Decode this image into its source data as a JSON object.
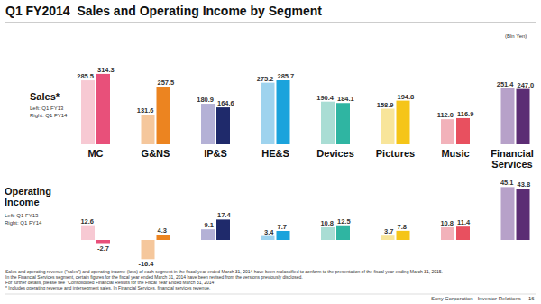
{
  "page": {
    "title": "Q1 FY2014  Sales and Operating Income by Segment",
    "unit": "(Bln Yen)",
    "footnotes": [
      "Sales and operating revenue (\"sales\") and operating income (loss) of each segment in the fiscal year ended March 31, 2014 have been reclassified to conform to the presentation of the fiscal year ending March 31, 2015.",
      "In the Financial Services segment, certain figures for the fiscal year ended March 31, 2014 have been revised from the versions previously disclosed.",
      "For further details, please see \"Consolidated Financial Results for the Fiscal Year Ended March 31, 2014\"",
      "* Includes operating revenue and intersegment sales. In Financial Services, financial services revenue."
    ],
    "footer": "Sony Corporation   Investor Relations",
    "page_number": 16
  },
  "chart_data": [
    {
      "type": "bar",
      "title": "Sales*",
      "categories": [
        "MC",
        "G&NS",
        "IP&S",
        "HE&S",
        "Devices",
        "Pictures",
        "Music",
        "Financial Services"
      ],
      "series": [
        {
          "name": "Left: Q1 FY13",
          "colors": [
            "#f7c9d3",
            "#f5c79c",
            "#b4b1d6",
            "#9ed3ee",
            "#a9ddd4",
            "#f8e59a",
            "#f2b2ba",
            "#b7a1c9"
          ],
          "values": [
            285.5,
            131.6,
            180.9,
            275.2,
            190.4,
            158.9,
            112.0,
            251.4
          ],
          "value_labels": [
            "285.5",
            "131.6",
            "180.9",
            "275.2",
            "190.4",
            "158.9",
            "112.0",
            "251.4"
          ]
        },
        {
          "name": "Right: Q1 FY14",
          "colors": [
            "#e8507a",
            "#ec8420",
            "#1f2a6b",
            "#1ba3dc",
            "#2fb5a2",
            "#f5c518",
            "#e8505f",
            "#5c2d74"
          ],
          "values": [
            314.3,
            257.5,
            164.6,
            285.7,
            184.1,
            194.8,
            116.9,
            247.0
          ],
          "value_labels": [
            "314.3",
            "257.5",
            "164.6",
            "285.7",
            "184.1",
            "194.8",
            "116.9",
            "247.0"
          ]
        }
      ],
      "ylim": [
        0,
        330
      ],
      "data_labels": true,
      "tick_labels": false
    },
    {
      "type": "bar",
      "title": "Operating Income",
      "series": [
        {
          "name": "Left: Q1 FY13",
          "colors": [
            "#f7c9d3",
            "#f5c79c",
            "#b4b1d6",
            "#9ed3ee",
            "#a9ddd4",
            "#f8e59a",
            "#f2b2ba",
            "#b7a1c9"
          ],
          "values": [
            12.6,
            -16.4,
            9.1,
            3.4,
            10.8,
            3.7,
            10.8,
            45.1
          ],
          "value_labels": [
            "12.6",
            "-16.4",
            "9.1",
            "3.4",
            "10.8",
            "3.7",
            "10.8",
            "45.1"
          ]
        },
        {
          "name": "Right: Q1 FY14",
          "colors": [
            "#e8507a",
            "#ec8420",
            "#1f2a6b",
            "#1ba3dc",
            "#2fb5a2",
            "#f5c518",
            "#e8505f",
            "#5c2d74"
          ],
          "values": [
            -2.7,
            4.3,
            17.4,
            7.7,
            12.5,
            7.8,
            11.4,
            43.8
          ],
          "value_labels": [
            "-2.7",
            "4.3",
            "17.4",
            "7.7",
            "12.5",
            "7.8",
            "11.4",
            "43.8"
          ]
        }
      ],
      "ylim": [
        -20,
        50
      ],
      "data_labels": true,
      "tick_labels": false
    }
  ]
}
